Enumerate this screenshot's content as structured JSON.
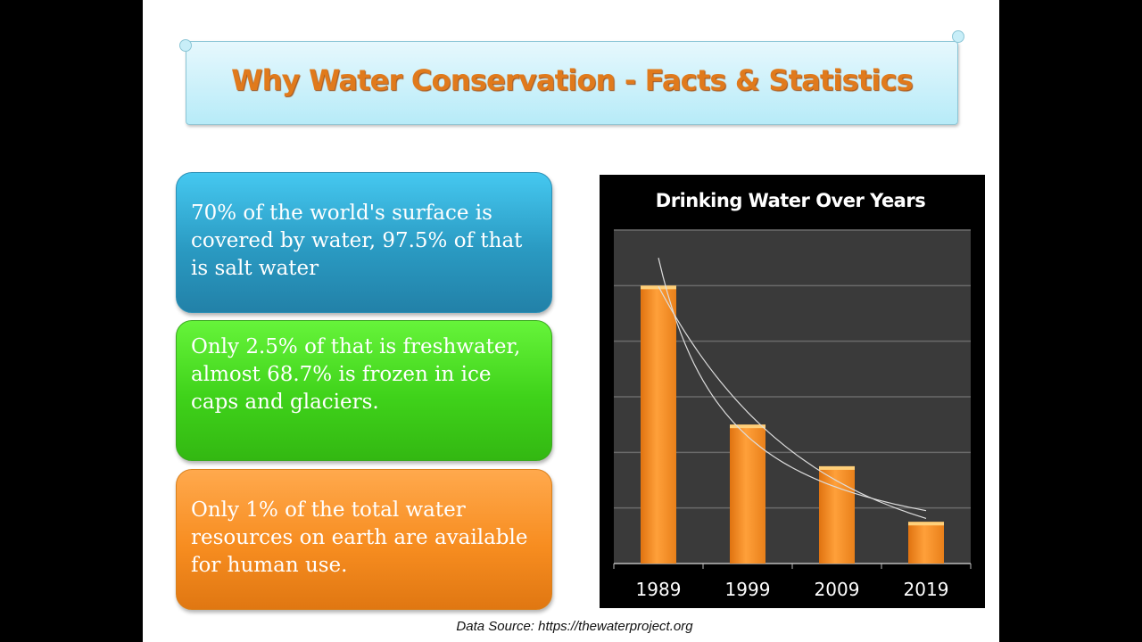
{
  "slide": {
    "title": "Why Water Conservation - Facts & Statistics",
    "facts": [
      {
        "text": "70% of the world's surface is covered by water, 97.5% of that is salt water",
        "color": "#35afdc"
      },
      {
        "text": "Only 2.5% of that is freshwater, almost 68.7% is frozen in ice caps and glaciers.",
        "color": "#4ade22"
      },
      {
        "text": "Only 1% of the total water resources on earth are available for human use.",
        "color": "#f7901e"
      }
    ],
    "source": "Data Source: https://thewaterproject.org"
  },
  "chart_data": {
    "type": "bar",
    "title": "Drinking Water Over Years",
    "categories": [
      "1989",
      "1999",
      "2009",
      "2019"
    ],
    "values": [
      5,
      2.5,
      1.75,
      0.75
    ],
    "xlabel": "",
    "ylabel": "",
    "ylim": [
      0,
      6
    ],
    "y_tick_labels_shown": false,
    "grid": true,
    "trendlines": 2,
    "bar_color": "#f7931e",
    "background": "#3a3a3a"
  }
}
